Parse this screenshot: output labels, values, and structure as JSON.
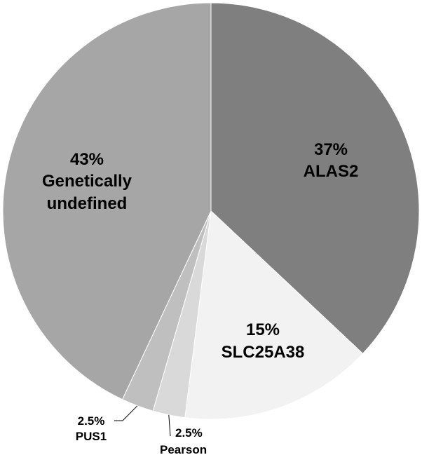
{
  "chart_data": {
    "type": "pie",
    "title": "",
    "start_angle_deg": 0,
    "direction": "clockwise",
    "slices": [
      {
        "label": "ALAS2",
        "percent_label": "37%",
        "value": 37,
        "color": "#7f7f7f",
        "label_mode": "inside",
        "text_color": "#000000"
      },
      {
        "label": "SLC25A38",
        "percent_label": "15%",
        "value": 15,
        "color": "#f2f2f2",
        "label_mode": "inside",
        "text_color": "#000000"
      },
      {
        "label": "Pearson",
        "percent_label": "2.5%",
        "value": 2.5,
        "color": "#d9d9d9",
        "label_mode": "leader",
        "text_color": "#000000"
      },
      {
        "label": "PUS1",
        "percent_label": "2.5%",
        "value": 2.5,
        "color": "#bfbfbf",
        "label_mode": "leader",
        "text_color": "#000000"
      },
      {
        "label": "Genetically undefined",
        "label_lines": [
          "Genetically",
          "undefined"
        ],
        "percent_label": "43%",
        "value": 43,
        "color": "#a6a6a6",
        "label_mode": "inside",
        "text_color": "#000000"
      }
    ],
    "legend": "none"
  }
}
